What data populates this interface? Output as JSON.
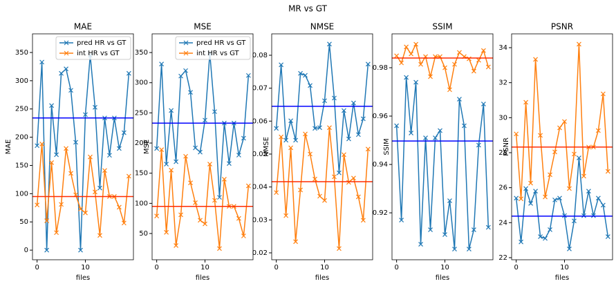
{
  "title": "MR vs GT",
  "chart_data": [
    {
      "type": "line",
      "title": "MAE",
      "xlabel": "files",
      "ylabel": "MAE",
      "x": [
        0,
        1,
        2,
        3,
        4,
        5,
        6,
        7,
        8,
        9,
        10,
        11,
        12,
        13,
        14,
        15,
        16,
        17,
        18,
        19
      ],
      "xlim": [
        -0.95,
        19.95
      ],
      "xticks": [
        0,
        10
      ],
      "ylim": [
        -17,
        383
      ],
      "yticks": [
        0,
        50,
        100,
        150,
        200,
        250,
        300,
        350
      ],
      "legend": "upper right",
      "series": [
        {
          "name": "pred HR vs GT",
          "color": "#1f77b4",
          "marker": "x",
          "values": [
            185,
            333,
            0,
            256,
            169,
            313,
            321,
            283,
            191,
            0,
            240,
            345,
            253,
            110,
            234,
            168,
            234,
            180,
            208,
            313
          ]
        },
        {
          "name": "int HR vs GT",
          "color": "#ff7f0e",
          "marker": "x",
          "values": [
            80,
            188,
            52,
            155,
            31,
            81,
            180,
            136,
            98,
            73,
            66,
            165,
            103,
            26,
            141,
            95,
            95,
            76,
            48,
            131
          ]
        }
      ],
      "hlines": [
        {
          "y": 234,
          "color": "#0000ff"
        },
        {
          "y": 95,
          "color": "#ff2a00"
        }
      ]
    },
    {
      "type": "line",
      "title": "MSE",
      "xlabel": "files",
      "ylabel": "MSE",
      "x": [
        0,
        1,
        2,
        3,
        4,
        5,
        6,
        7,
        8,
        9,
        10,
        11,
        12,
        13,
        14,
        15,
        16,
        17,
        18,
        19
      ],
      "xlim": [
        -0.95,
        19.95
      ],
      "xticks": [
        0,
        10
      ],
      "ylim": [
        6.5,
        381
      ],
      "yticks": [
        50,
        100,
        150,
        200,
        250,
        300,
        350
      ],
      "legend": "upper right",
      "series": [
        {
          "name": "pred HR vs GT",
          "color": "#1f77b4",
          "marker": "x",
          "values": [
            191,
            331,
            165,
            254,
            169,
            311,
            320,
            284,
            192,
            185,
            238,
            349,
            252,
            110,
            233,
            166,
            233,
            180,
            208,
            312
          ]
        },
        {
          "name": "int HR vs GT",
          "color": "#ff7f0e",
          "marker": "x",
          "values": [
            79,
            189,
            52,
            155,
            30,
            81,
            178,
            134,
            101,
            72,
            66,
            165,
            105,
            25,
            140,
            95,
            95,
            75,
            46,
            129
          ]
        }
      ],
      "hlines": [
        {
          "y": 233,
          "color": "#0000ff"
        },
        {
          "y": 95,
          "color": "#ff2a00"
        }
      ]
    },
    {
      "type": "line",
      "title": "NMSE",
      "xlabel": "files",
      "ylabel": "NMSE",
      "x": [
        0,
        1,
        2,
        3,
        4,
        5,
        6,
        7,
        8,
        9,
        10,
        11,
        12,
        13,
        14,
        15,
        16,
        17,
        18,
        19
      ],
      "xlim": [
        -0.95,
        19.95
      ],
      "xticks": [
        0,
        10
      ],
      "ylim": [
        0.0179,
        0.0865
      ],
      "yticks": [
        0.02,
        0.03,
        0.04,
        0.05,
        0.06,
        0.07,
        0.08
      ],
      "series": [
        {
          "name": "pred HR vs GT",
          "color": "#1f77b4",
          "marker": "x",
          "values": [
            0.0578,
            0.0771,
            0.0542,
            0.0601,
            0.0542,
            0.0745,
            0.0739,
            0.0708,
            0.0578,
            0.058,
            0.0662,
            0.0834,
            0.067,
            0.0443,
            0.0632,
            0.0546,
            0.0655,
            0.0559,
            0.0607,
            0.0773
          ]
        },
        {
          "name": "int HR vs GT",
          "color": "#ff7f0e",
          "marker": "x",
          "values": [
            0.0383,
            0.0552,
            0.0313,
            0.0519,
            0.0234,
            0.0391,
            0.0561,
            0.05,
            0.0424,
            0.0372,
            0.0359,
            0.058,
            0.0431,
            0.0213,
            0.0498,
            0.0414,
            0.0427,
            0.037,
            0.0299,
            0.0515
          ]
        }
      ],
      "hlines": [
        {
          "y": 0.0645,
          "color": "#0000ff"
        },
        {
          "y": 0.0416,
          "color": "#ff2a00"
        }
      ]
    },
    {
      "type": "line",
      "title": "SSIM",
      "xlabel": "files",
      "ylabel": "SSIM",
      "x": [
        0,
        1,
        2,
        3,
        4,
        5,
        6,
        7,
        8,
        9,
        10,
        11,
        12,
        13,
        14,
        15,
        16,
        17,
        18,
        19
      ],
      "xlim": [
        -0.95,
        19.95
      ],
      "xticks": [
        0,
        10
      ],
      "ylim": [
        0.9006,
        0.994
      ],
      "yticks": [
        0.92,
        0.94,
        0.96,
        0.98
      ],
      "series": [
        {
          "name": "pred HR vs GT",
          "color": "#1f77b4",
          "marker": "x",
          "values": [
            0.956,
            0.917,
            0.976,
            0.953,
            0.974,
            0.907,
            0.951,
            0.913,
            0.951,
            0.954,
            0.911,
            0.925,
            0.905,
            0.967,
            0.956,
            0.905,
            0.913,
            0.948,
            0.965,
            0.914
          ]
        },
        {
          "name": "int HR vs GT",
          "color": "#ff7f0e",
          "marker": "x",
          "values": [
            0.9849,
            0.982,
            0.9886,
            0.9857,
            0.9897,
            0.9814,
            0.9846,
            0.9763,
            0.9846,
            0.9846,
            0.98,
            0.9709,
            0.9814,
            0.9863,
            0.9846,
            0.9837,
            0.9786,
            0.9831,
            0.9871,
            0.9803
          ]
        }
      ],
      "hlines": [
        {
          "y": 0.9497,
          "color": "#0000ff"
        },
        {
          "y": 0.984,
          "color": "#ff2a00"
        }
      ]
    },
    {
      "type": "line",
      "title": "PSNR",
      "xlabel": "files",
      "ylabel": "PSNR",
      "x": [
        0,
        1,
        2,
        3,
        4,
        5,
        6,
        7,
        8,
        9,
        10,
        11,
        12,
        13,
        14,
        15,
        16,
        17,
        18,
        19
      ],
      "xlim": [
        -0.95,
        19.95
      ],
      "xticks": [
        0,
        10
      ],
      "ylim": [
        21.88,
        34.79
      ],
      "yticks": [
        22,
        24,
        26,
        28,
        30,
        32,
        34
      ],
      "series": [
        {
          "name": "pred HR vs GT",
          "color": "#1f77b4",
          "marker": "x",
          "values": [
            25.4,
            22.9,
            25.95,
            25.1,
            25.8,
            23.2,
            23.1,
            23.6,
            25.3,
            25.4,
            24.4,
            22.5,
            24.1,
            27.7,
            24.4,
            25.8,
            24.4,
            25.4,
            25.0,
            23.2
          ]
        },
        {
          "name": "int HR vs GT",
          "color": "#ff7f0e",
          "marker": "x",
          "values": [
            29.07,
            25.36,
            30.88,
            26.26,
            33.33,
            28.99,
            25.47,
            26.74,
            28.04,
            29.42,
            29.78,
            25.95,
            27.92,
            34.2,
            26.66,
            28.32,
            28.32,
            29.26,
            31.36,
            26.93
          ]
        }
      ],
      "hlines": [
        {
          "y": 24.37,
          "color": "#0000ff"
        },
        {
          "y": 28.32,
          "color": "#ff2a00"
        }
      ]
    }
  ]
}
